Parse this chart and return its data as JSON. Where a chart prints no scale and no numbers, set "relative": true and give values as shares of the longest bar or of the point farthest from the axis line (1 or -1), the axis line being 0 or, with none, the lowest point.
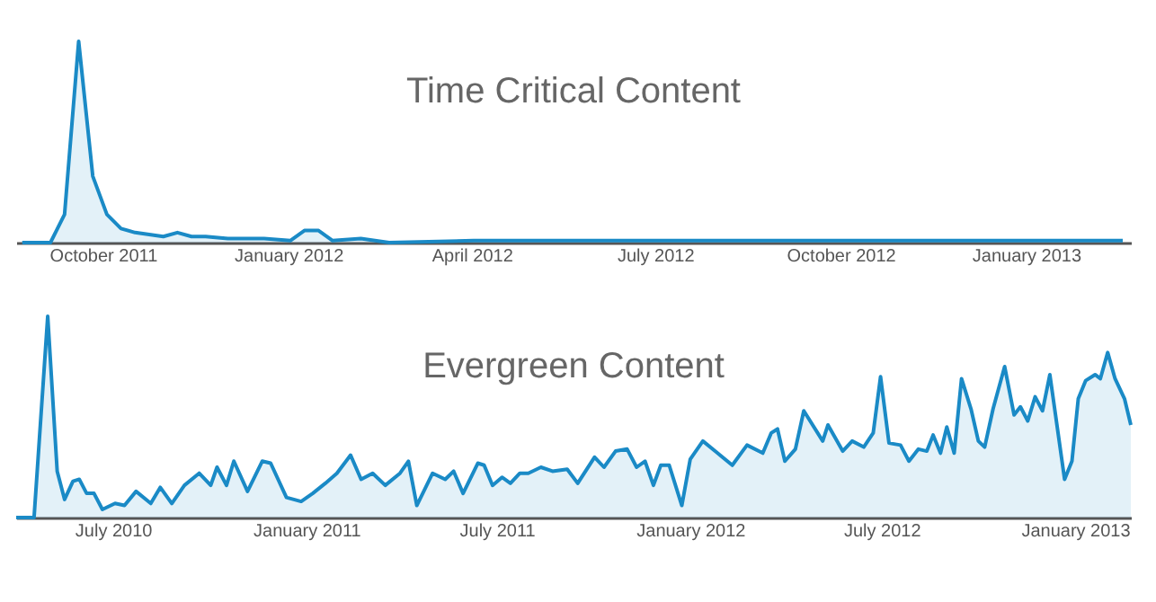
{
  "chart_data": [
    {
      "type": "area",
      "title": "Time Critical Content",
      "relative": true,
      "xlim": [
        "2011-08-19",
        "2013-02-22"
      ],
      "xticks": [
        {
          "value": "2011-10-01",
          "label": "October 2011"
        },
        {
          "value": "2012-01-01",
          "label": "January 2012"
        },
        {
          "value": "2012-04-01",
          "label": "April 2012"
        },
        {
          "value": "2012-07-01",
          "label": "July 2012"
        },
        {
          "value": "2012-10-01",
          "label": "October 2012"
        },
        {
          "value": "2013-01-01",
          "label": "January 2013"
        }
      ],
      "x": [
        "2011-08-22",
        "2011-08-29",
        "2011-09-05",
        "2011-09-12",
        "2011-09-19",
        "2011-09-26",
        "2011-10-03",
        "2011-10-10",
        "2011-10-17",
        "2011-10-31",
        "2011-11-07",
        "2011-11-14",
        "2011-11-21",
        "2011-12-02",
        "2011-12-20",
        "2012-01-02",
        "2012-01-09",
        "2012-01-16",
        "2012-01-23",
        "2012-02-06",
        "2012-02-20",
        "2012-04-02",
        "2012-06-04",
        "2012-08-06",
        "2012-10-01",
        "2012-12-03",
        "2013-02-18"
      ],
      "series": [
        {
          "color": "#1a8ac6",
          "values": [
            0,
            0,
            0,
            0.14,
            1,
            0.33,
            0.14,
            0.07,
            0.05,
            0.03,
            0.05,
            0.03,
            0.03,
            0.02,
            0.02,
            0.01,
            0.06,
            0.06,
            0.01,
            0.02,
            0,
            0.01,
            0.01,
            0.01,
            0.01,
            0.01,
            0.01
          ]
        }
      ]
    },
    {
      "type": "area",
      "title": "Evergreen Content",
      "relative": true,
      "xlim": [
        "2010-03-31",
        "2013-02-23"
      ],
      "xticks": [
        {
          "value": "2010-07-01",
          "label": "July 2010"
        },
        {
          "value": "2011-01-01",
          "label": "January 2011"
        },
        {
          "value": "2011-07-01",
          "label": "July 2011"
        },
        {
          "value": "2012-01-01",
          "label": "January 2012"
        },
        {
          "value": "2012-07-01",
          "label": "July 2012"
        },
        {
          "value": "2013-01-01",
          "label": "January 2013"
        }
      ],
      "x": [
        "2010-03-31",
        "2010-04-17",
        "2010-04-30",
        "2010-05-09",
        "2010-05-16",
        "2010-05-24",
        "2010-05-30",
        "2010-06-06",
        "2010-06-13",
        "2010-06-21",
        "2010-07-03",
        "2010-07-12",
        "2010-07-23",
        "2010-08-06",
        "2010-08-15",
        "2010-08-26",
        "2010-09-07",
        "2010-09-21",
        "2010-10-02",
        "2010-10-08",
        "2010-10-17",
        "2010-10-24",
        "2010-11-06",
        "2010-11-20",
        "2010-11-28",
        "2010-12-13",
        "2010-12-27",
        "2011-01-07",
        "2011-01-19",
        "2011-01-30",
        "2011-02-12",
        "2011-02-22",
        "2011-03-05",
        "2011-03-17",
        "2011-03-31",
        "2011-04-08",
        "2011-04-16",
        "2011-05-01",
        "2011-05-13",
        "2011-05-21",
        "2011-05-30",
        "2011-06-13",
        "2011-06-19",
        "2011-06-27",
        "2011-07-06",
        "2011-07-14",
        "2011-07-23",
        "2011-07-31",
        "2011-08-12",
        "2011-08-23",
        "2011-09-06",
        "2011-09-16",
        "2011-10-02",
        "2011-10-11",
        "2011-10-22",
        "2011-11-02",
        "2011-11-11",
        "2011-11-19",
        "2011-11-27",
        "2011-12-04",
        "2011-12-12",
        "2011-12-24",
        "2012-01-01",
        "2012-01-13",
        "2012-01-27",
        "2012-02-10",
        "2012-02-24",
        "2012-03-10",
        "2012-03-18",
        "2012-03-24",
        "2012-03-31",
        "2012-04-10",
        "2012-04-18",
        "2012-05-06",
        "2012-05-11",
        "2012-05-25",
        "2012-06-03",
        "2012-06-14",
        "2012-06-23",
        "2012-06-30",
        "2012-07-08",
        "2012-07-19",
        "2012-07-27",
        "2012-08-05",
        "2012-08-13",
        "2012-08-19",
        "2012-08-26",
        "2012-09-01",
        "2012-09-08",
        "2012-09-15",
        "2012-09-24",
        "2012-10-01",
        "2012-10-07",
        "2012-10-15",
        "2012-10-26",
        "2012-11-04",
        "2012-11-10",
        "2012-11-17",
        "2012-11-24",
        "2012-12-01",
        "2012-12-08",
        "2012-12-22",
        "2012-12-29",
        "2013-01-04",
        "2013-01-11",
        "2013-01-20",
        "2013-01-25",
        "2013-02-01",
        "2013-02-08",
        "2013-02-17",
        "2013-02-23"
      ],
      "series": [
        {
          "color": "#1a8ac6",
          "values": [
            0,
            0,
            1,
            0.23,
            0.09,
            0.18,
            0.19,
            0.12,
            0.12,
            0.04,
            0.07,
            0.06,
            0.13,
            0.07,
            0.15,
            0.07,
            0.16,
            0.22,
            0.16,
            0.25,
            0.16,
            0.28,
            0.13,
            0.28,
            0.27,
            0.1,
            0.08,
            0.12,
            0.17,
            0.22,
            0.31,
            0.19,
            0.22,
            0.16,
            0.22,
            0.28,
            0.06,
            0.22,
            0.19,
            0.23,
            0.12,
            0.27,
            0.26,
            0.16,
            0.2,
            0.17,
            0.22,
            0.22,
            0.25,
            0.23,
            0.24,
            0.17,
            0.3,
            0.25,
            0.33,
            0.34,
            0.25,
            0.28,
            0.16,
            0.26,
            0.26,
            0.06,
            0.29,
            0.38,
            0.32,
            0.26,
            0.36,
            0.32,
            0.42,
            0.44,
            0.28,
            0.34,
            0.53,
            0.38,
            0.46,
            0.33,
            0.38,
            0.35,
            0.42,
            0.7,
            0.37,
            0.36,
            0.28,
            0.34,
            0.33,
            0.41,
            0.32,
            0.45,
            0.32,
            0.69,
            0.54,
            0.38,
            0.35,
            0.54,
            0.75,
            0.51,
            0.55,
            0.48,
            0.6,
            0.53,
            0.71,
            0.19,
            0.28,
            0.59,
            0.68,
            0.71,
            0.69,
            0.82,
            0.69,
            0.59,
            0.46
          ]
        }
      ]
    }
  ]
}
